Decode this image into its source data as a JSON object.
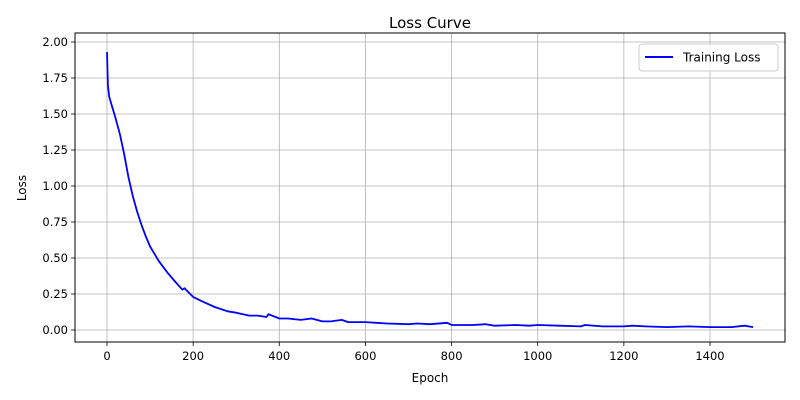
{
  "chart_data": {
    "type": "line",
    "title": "Loss Curve",
    "xlabel": "Epoch",
    "ylabel": "Loss",
    "xlim": [
      -75,
      1575
    ],
    "ylim": [
      -0.09,
      2.07
    ],
    "xticks": [
      0,
      200,
      400,
      600,
      800,
      1000,
      1200,
      1400
    ],
    "yticks": [
      0.0,
      0.25,
      0.5,
      0.75,
      1.0,
      1.25,
      1.5,
      1.75,
      2.0
    ],
    "ytick_labels": [
      "0.00",
      "0.25",
      "0.50",
      "0.75",
      "1.00",
      "1.25",
      "1.50",
      "1.75",
      "2.00"
    ],
    "grid": true,
    "legend_position": "upper right",
    "series": [
      {
        "name": "Training Loss",
        "color": "#0000ff",
        "x": [
          0,
          2,
          5,
          10,
          20,
          30,
          40,
          50,
          60,
          70,
          80,
          90,
          100,
          120,
          140,
          160,
          175,
          180,
          200,
          220,
          250,
          280,
          300,
          330,
          350,
          370,
          375,
          400,
          420,
          450,
          475,
          500,
          520,
          545,
          560,
          600,
          650,
          700,
          720,
          750,
          790,
          800,
          850,
          880,
          900,
          950,
          980,
          1000,
          1050,
          1100,
          1110,
          1150,
          1200,
          1220,
          1250,
          1300,
          1350,
          1400,
          1450,
          1480,
          1500
        ],
        "y": [
          1.93,
          1.7,
          1.62,
          1.57,
          1.47,
          1.36,
          1.22,
          1.06,
          0.93,
          0.82,
          0.73,
          0.65,
          0.58,
          0.48,
          0.4,
          0.33,
          0.28,
          0.29,
          0.23,
          0.2,
          0.16,
          0.13,
          0.12,
          0.1,
          0.1,
          0.09,
          0.11,
          0.08,
          0.08,
          0.07,
          0.08,
          0.06,
          0.06,
          0.07,
          0.055,
          0.055,
          0.045,
          0.04,
          0.045,
          0.04,
          0.05,
          0.035,
          0.035,
          0.04,
          0.03,
          0.035,
          0.03,
          0.035,
          0.03,
          0.025,
          0.035,
          0.025,
          0.025,
          0.03,
          0.025,
          0.02,
          0.025,
          0.02,
          0.02,
          0.03,
          0.02
        ]
      }
    ]
  }
}
